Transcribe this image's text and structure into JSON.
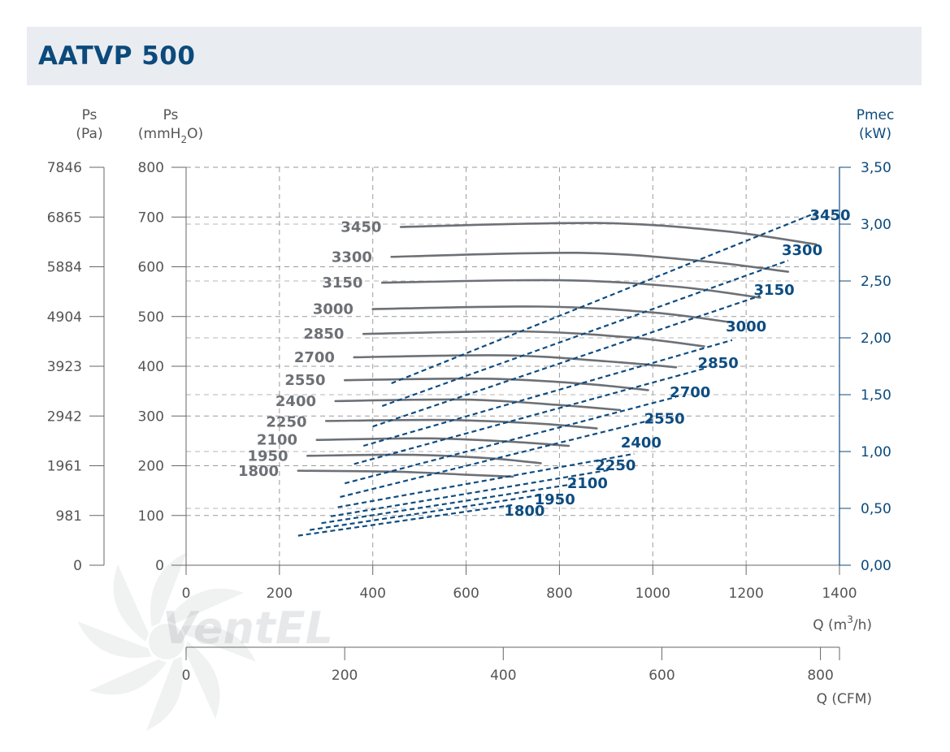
{
  "header": {
    "title": "AATVP 500"
  },
  "brand": {
    "watermark_text": "VentEL"
  },
  "colors": {
    "title": "#0c4a7c",
    "accent": "#0c4a7c",
    "pressure_curve": "#6d7176",
    "power_curve": "#0d4c80",
    "grid": "#9a9a9a",
    "axis_text": "#555555",
    "header_bg": "#e9edf1"
  },
  "chart_data": {
    "type": "line",
    "title": "AATVP 500",
    "axes": {
      "left_pa": {
        "label": "Ps",
        "unit": "(Pa)",
        "ticks": [
          "0",
          "981",
          "1961",
          "2942",
          "3923",
          "4904",
          "5884",
          "6865",
          "7846"
        ]
      },
      "left_mm": {
        "label": "Ps",
        "unit_prefix": "(mmH",
        "unit_sub": "2",
        "unit_suffix": "O)",
        "range": [
          0,
          800
        ],
        "ticks": [
          "0",
          "100",
          "200",
          "300",
          "400",
          "500",
          "600",
          "700",
          "800"
        ]
      },
      "right": {
        "label": "Pmec",
        "unit": "(kW)",
        "range": [
          0,
          3.5
        ],
        "ticks": [
          "0,00",
          "0,50",
          "1,00",
          "1,50",
          "2,00",
          "2,50",
          "3,00",
          "3,50"
        ]
      },
      "x": {
        "label_prefix": "Q (m",
        "label_sup": "3",
        "label_suffix": "/h)",
        "range": [
          0,
          1400
        ],
        "ticks": [
          "0",
          "200",
          "400",
          "600",
          "800",
          "1000",
          "1200",
          "1400"
        ]
      },
      "x2": {
        "label": "Q (CFM)",
        "range": [
          0,
          824
        ],
        "ticks": [
          "0",
          "200",
          "400",
          "600",
          "800"
        ],
        "tick_values": [
          0,
          200,
          400,
          600,
          800
        ]
      }
    },
    "pressure_series": [
      {
        "name": "1800",
        "points": [
          [
            240,
            190
          ],
          [
            450,
            188
          ],
          [
            600,
            182
          ],
          [
            700,
            178
          ]
        ]
      },
      {
        "name": "1950",
        "points": [
          [
            260,
            220
          ],
          [
            480,
            222
          ],
          [
            650,
            215
          ],
          [
            760,
            205
          ]
        ]
      },
      {
        "name": "2100",
        "points": [
          [
            280,
            252
          ],
          [
            520,
            255
          ],
          [
            700,
            248
          ],
          [
            820,
            240
          ]
        ]
      },
      {
        "name": "2250",
        "points": [
          [
            300,
            290
          ],
          [
            560,
            292
          ],
          [
            750,
            285
          ],
          [
            880,
            275
          ]
        ]
      },
      {
        "name": "2400",
        "points": [
          [
            320,
            330
          ],
          [
            600,
            333
          ],
          [
            800,
            322
          ],
          [
            930,
            312
          ]
        ]
      },
      {
        "name": "2550",
        "points": [
          [
            340,
            372
          ],
          [
            640,
            375
          ],
          [
            850,
            365
          ],
          [
            990,
            352
          ]
        ]
      },
      {
        "name": "2700",
        "points": [
          [
            360,
            418
          ],
          [
            680,
            422
          ],
          [
            900,
            410
          ],
          [
            1050,
            398
          ]
        ]
      },
      {
        "name": "2850",
        "points": [
          [
            380,
            465
          ],
          [
            720,
            470
          ],
          [
            950,
            458
          ],
          [
            1110,
            440
          ]
        ]
      },
      {
        "name": "3000",
        "points": [
          [
            400,
            515
          ],
          [
            760,
            520
          ],
          [
            1000,
            508
          ],
          [
            1170,
            488
          ]
        ]
      },
      {
        "name": "3150",
        "points": [
          [
            420,
            568
          ],
          [
            800,
            573
          ],
          [
            1050,
            560
          ],
          [
            1230,
            538
          ]
        ]
      },
      {
        "name": "3300",
        "points": [
          [
            440,
            620
          ],
          [
            840,
            628
          ],
          [
            1100,
            612
          ],
          [
            1290,
            590
          ]
        ]
      },
      {
        "name": "3450",
        "points": [
          [
            460,
            680
          ],
          [
            880,
            688
          ],
          [
            1150,
            672
          ],
          [
            1350,
            645
          ]
        ]
      }
    ],
    "power_series": [
      {
        "name": "1800",
        "points": [
          [
            240,
            0.26
          ],
          [
            700,
            0.53
          ]
        ]
      },
      {
        "name": "1950",
        "points": [
          [
            265,
            0.31
          ],
          [
            765,
            0.62
          ]
        ]
      },
      {
        "name": "2100",
        "points": [
          [
            290,
            0.37
          ],
          [
            840,
            0.72
          ]
        ]
      },
      {
        "name": "2250",
        "points": [
          [
            310,
            0.43
          ],
          [
            910,
            0.84
          ]
        ]
      },
      {
        "name": "2400",
        "points": [
          [
            325,
            0.51
          ],
          [
            960,
            0.98
          ]
        ]
      },
      {
        "name": "2550",
        "points": [
          [
            330,
            0.6
          ],
          [
            1000,
            1.28
          ]
        ]
      },
      {
        "name": "2700",
        "points": [
          [
            340,
            0.72
          ],
          [
            1050,
            1.48
          ]
        ]
      },
      {
        "name": "2850",
        "points": [
          [
            360,
            0.89
          ],
          [
            1110,
            1.73
          ]
        ]
      },
      {
        "name": "3000",
        "points": [
          [
            380,
            1.05
          ],
          [
            1170,
            1.98
          ]
        ]
      },
      {
        "name": "3150",
        "points": [
          [
            400,
            1.22
          ],
          [
            1230,
            2.37
          ]
        ]
      },
      {
        "name": "3300",
        "points": [
          [
            420,
            1.4
          ],
          [
            1290,
            2.68
          ]
        ]
      },
      {
        "name": "3450",
        "points": [
          [
            440,
            1.6
          ],
          [
            1350,
            3.1
          ]
        ]
      }
    ],
    "pressure_label_positions": [
      [
        155,
        189
      ],
      [
        175,
        220
      ],
      [
        195,
        252
      ],
      [
        215,
        288
      ],
      [
        235,
        330
      ],
      [
        255,
        372
      ],
      [
        275,
        418
      ],
      [
        295,
        465
      ],
      [
        315,
        515
      ],
      [
        335,
        568
      ],
      [
        355,
        620
      ],
      [
        375,
        680
      ]
    ],
    "power_label_positions": [
      [
        725,
        0.48
      ],
      [
        790,
        0.58
      ],
      [
        860,
        0.72
      ],
      [
        920,
        0.88
      ],
      [
        975,
        1.08
      ],
      [
        1025,
        1.29
      ],
      [
        1080,
        1.52
      ],
      [
        1140,
        1.78
      ],
      [
        1200,
        2.1
      ],
      [
        1260,
        2.42
      ],
      [
        1320,
        2.77
      ],
      [
        1380,
        3.08
      ]
    ]
  }
}
